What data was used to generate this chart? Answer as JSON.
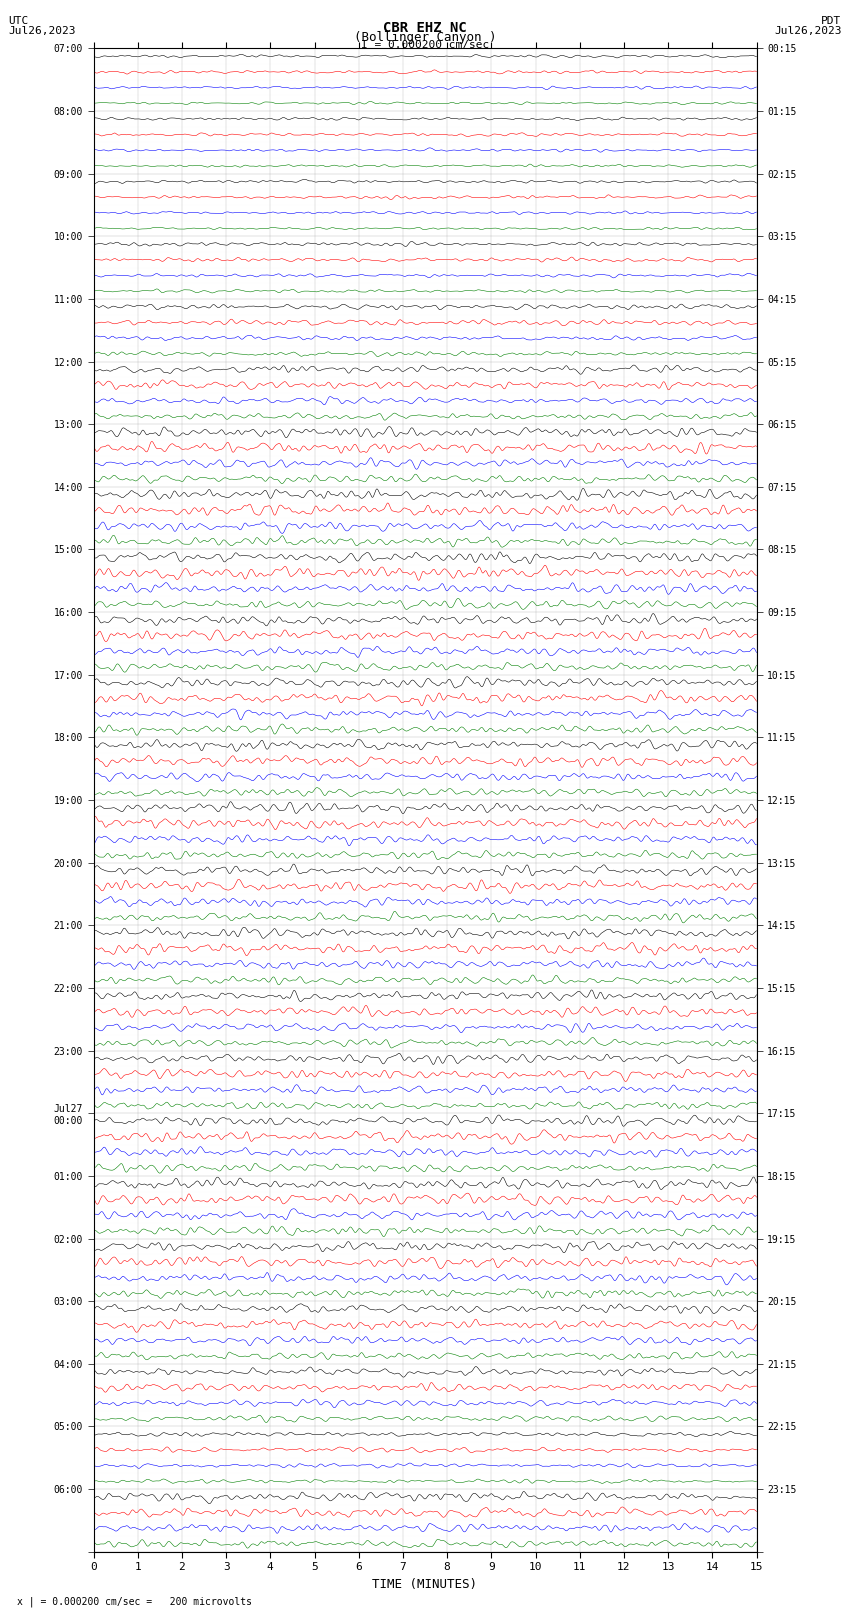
{
  "title_line1": "CBR EHZ NC",
  "title_line2": "(Bollinger Canyon )",
  "scale_label": "I = 0.000200 cm/sec",
  "left_date_label": "UTC\nJul26,2023",
  "right_date_label": "PDT\nJul26,2023",
  "bottom_label": "TIME (MINUTES)",
  "footnote": "x | = 0.000200 cm/sec =   200 microvolts",
  "utc_times": [
    "07:00",
    "08:00",
    "09:00",
    "10:00",
    "11:00",
    "12:00",
    "13:00",
    "14:00",
    "15:00",
    "16:00",
    "17:00",
    "18:00",
    "19:00",
    "20:00",
    "21:00",
    "22:00",
    "23:00",
    "Jul27\n00:00",
    "01:00",
    "02:00",
    "03:00",
    "04:00",
    "05:00",
    "06:00"
  ],
  "pdt_times": [
    "00:15",
    "01:15",
    "02:15",
    "03:15",
    "04:15",
    "05:15",
    "06:15",
    "07:15",
    "08:15",
    "09:15",
    "10:15",
    "11:15",
    "12:15",
    "13:15",
    "14:15",
    "15:15",
    "16:15",
    "17:15",
    "18:15",
    "19:15",
    "20:15",
    "21:15",
    "22:15",
    "23:15"
  ],
  "colors": [
    "black",
    "red",
    "blue",
    "green"
  ],
  "num_hour_rows": 24,
  "traces_per_hour": 4,
  "x_min": 0,
  "x_max": 15,
  "x_ticks": [
    0,
    1,
    2,
    3,
    4,
    5,
    6,
    7,
    8,
    9,
    10,
    11,
    12,
    13,
    14,
    15
  ],
  "bg_color": "white",
  "seed": 42,
  "amp_by_hour": [
    0.04,
    0.04,
    0.04,
    0.05,
    0.07,
    0.1,
    0.13,
    0.14,
    0.14,
    0.13,
    0.13,
    0.13,
    0.13,
    0.13,
    0.13,
    0.12,
    0.12,
    0.13,
    0.14,
    0.13,
    0.12,
    0.1,
    0.06,
    0.12
  ]
}
